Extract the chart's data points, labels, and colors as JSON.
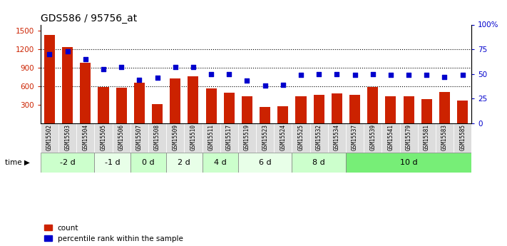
{
  "title": "GDS586 / 95756_at",
  "samples": [
    "GSM15502",
    "GSM15503",
    "GSM15504",
    "GSM15505",
    "GSM15506",
    "GSM15507",
    "GSM15508",
    "GSM15509",
    "GSM15510",
    "GSM15511",
    "GSM15517",
    "GSM15519",
    "GSM15523",
    "GSM15524",
    "GSM15525",
    "GSM15532",
    "GSM15534",
    "GSM15537",
    "GSM15539",
    "GSM15541",
    "GSM15579",
    "GSM15581",
    "GSM15583",
    "GSM15585"
  ],
  "counts": [
    1430,
    1230,
    980,
    590,
    570,
    650,
    310,
    730,
    760,
    560,
    490,
    430,
    260,
    270,
    440,
    460,
    480,
    460,
    580,
    440,
    430,
    390,
    510,
    360
  ],
  "percentiles": [
    70,
    73,
    65,
    55,
    57,
    44,
    46,
    57,
    57,
    50,
    50,
    43,
    38,
    39,
    49,
    50,
    50,
    49,
    50,
    49,
    49,
    49,
    47,
    49
  ],
  "time_groups": [
    {
      "label": "-2 d",
      "start": 0,
      "end": 3,
      "color": "#ccffcc"
    },
    {
      "label": "-1 d",
      "start": 3,
      "end": 5,
      "color": "#e8ffe8"
    },
    {
      "label": "0 d",
      "start": 5,
      "end": 7,
      "color": "#ccffcc"
    },
    {
      "label": "2 d",
      "start": 7,
      "end": 9,
      "color": "#e8ffe8"
    },
    {
      "label": "4 d",
      "start": 9,
      "end": 11,
      "color": "#ccffcc"
    },
    {
      "label": "6 d",
      "start": 11,
      "end": 14,
      "color": "#e8ffe8"
    },
    {
      "label": "8 d",
      "start": 14,
      "end": 17,
      "color": "#ccffcc"
    },
    {
      "label": "10 d",
      "start": 17,
      "end": 24,
      "color": "#77ee77"
    }
  ],
  "bar_color": "#cc2200",
  "dot_color": "#0000cc",
  "ylim_left": [
    0,
    1600
  ],
  "ylim_right": [
    0,
    100
  ],
  "yticks_left": [
    300,
    600,
    900,
    1200,
    1500
  ],
  "yticks_right": [
    0,
    25,
    50,
    75,
    100
  ],
  "yticklabels_right": [
    "0",
    "25",
    "50",
    "75",
    "100%"
  ],
  "grid_values": [
    600,
    900,
    1200
  ],
  "title_fontsize": 10,
  "bar_width": 0.6,
  "label_bg_color": "#dddddd",
  "time_label": "time"
}
